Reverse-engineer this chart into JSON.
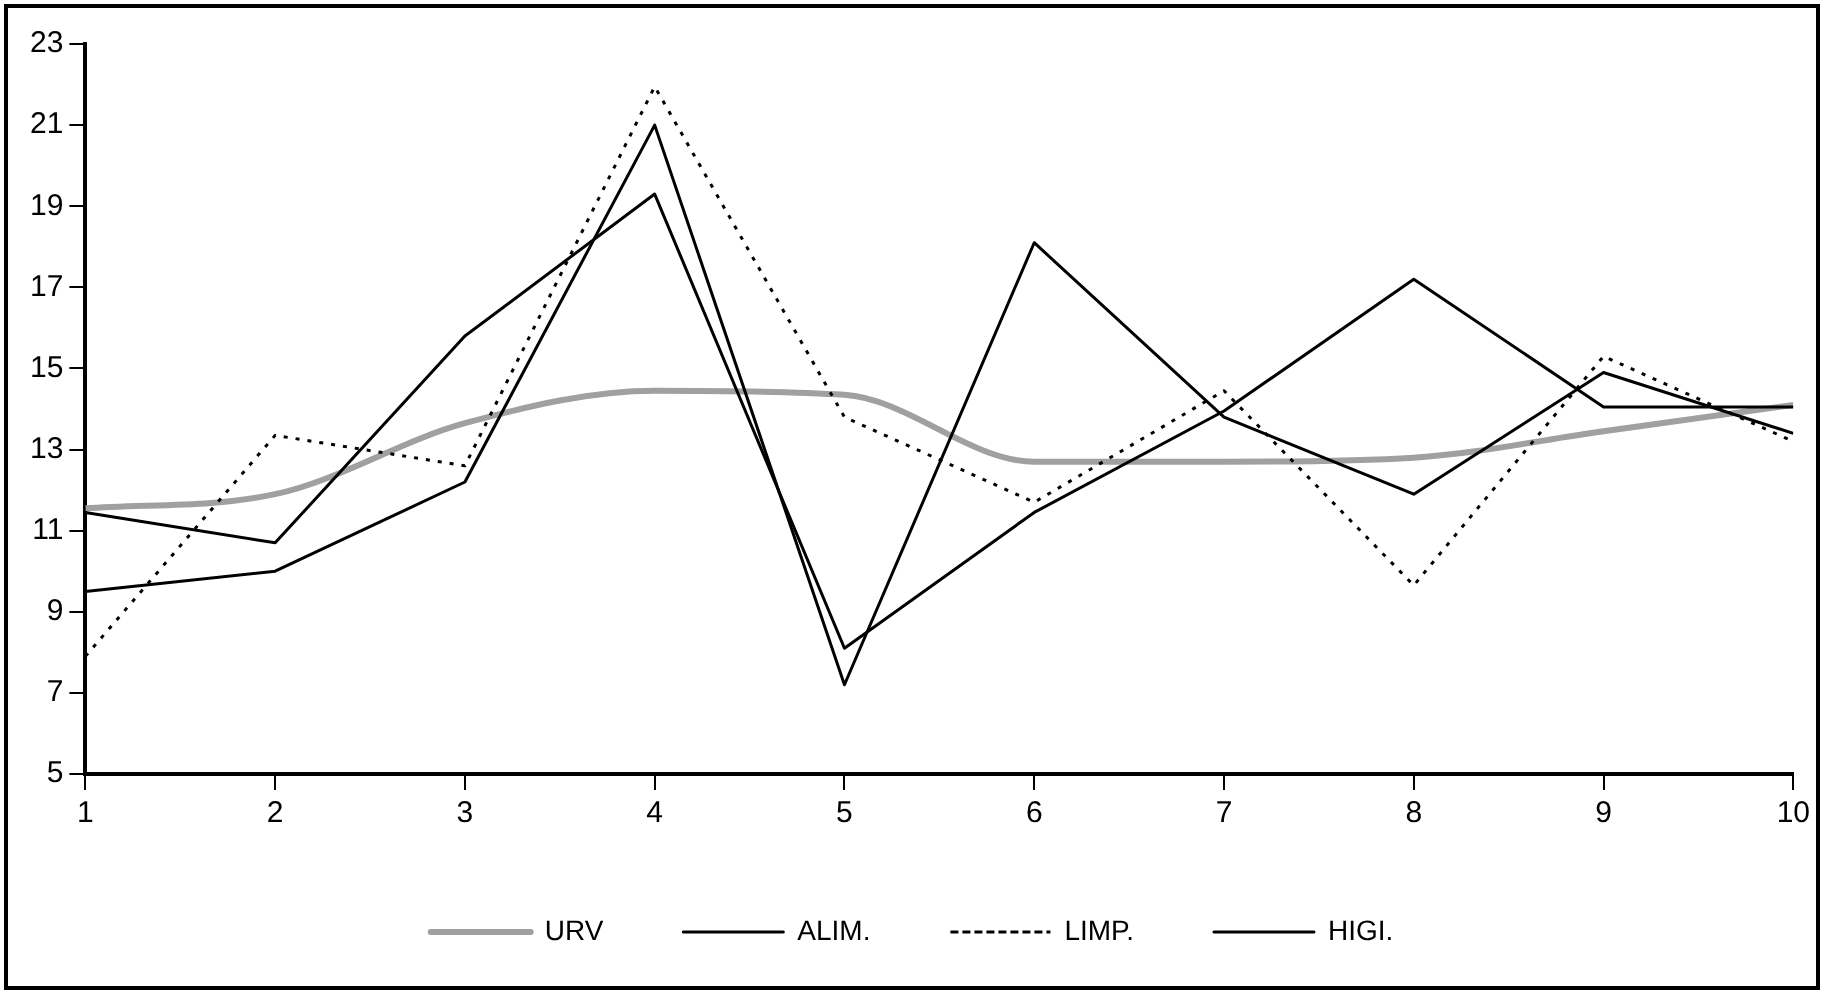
{
  "chart_data": {
    "type": "line",
    "x": [
      1,
      2,
      3,
      4,
      5,
      6,
      7,
      8,
      9,
      10
    ],
    "series": [
      {
        "name": "URV",
        "color": "#a0a0a0",
        "values": [
          11.55,
          11.9,
          13.65,
          14.45,
          14.35,
          12.7,
          12.7,
          12.8,
          13.45,
          14.1
        ]
      },
      {
        "name": "ALIM.",
        "color": "#000000",
        "values": [
          11.45,
          10.7,
          15.8,
          19.3,
          8.1,
          11.45,
          13.95,
          17.2,
          14.05,
          14.05
        ]
      },
      {
        "name": "LIMP.",
        "color": "#000000",
        "line_style": "dotted",
        "values": [
          7.9,
          13.35,
          12.6,
          21.95,
          13.8,
          11.7,
          14.45,
          9.65,
          15.3,
          13.2
        ]
      },
      {
        "name": "HIGI.",
        "color": "#000000",
        "values": [
          9.5,
          10.0,
          12.2,
          21.0,
          7.2,
          18.1,
          13.8,
          11.9,
          14.9,
          13.4
        ]
      }
    ],
    "xlim": [
      1,
      10
    ],
    "xticks": [
      1,
      2,
      3,
      4,
      5,
      6,
      7,
      8,
      9,
      10
    ],
    "ylim": [
      5,
      23
    ],
    "yticks": [
      5,
      7,
      9,
      11,
      13,
      15,
      17,
      19,
      21,
      23
    ],
    "grid": false,
    "legend": "bottom",
    "marker": "none",
    "line_style": "solid"
  }
}
